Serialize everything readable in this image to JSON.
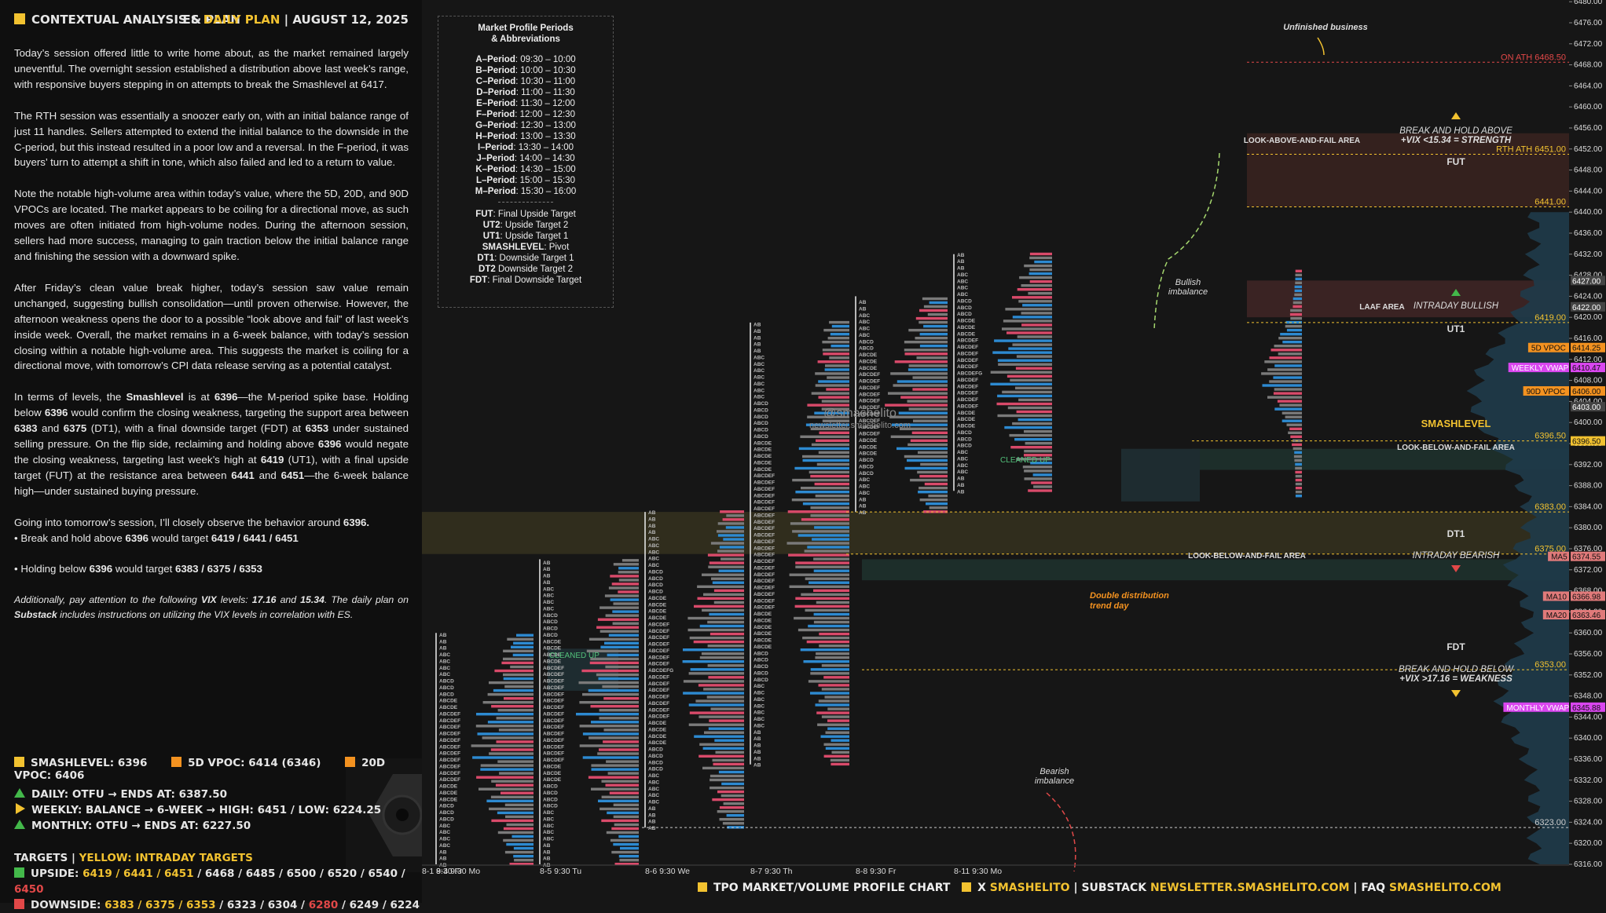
{
  "header": {
    "title": "CONTEXTUAL ANALYSIS & PLAN",
    "plan_prefix": "ES",
    "plan_label": "DAILY PLAN",
    "separator": "|",
    "date": "AUGUST 12, 2025"
  },
  "body": {
    "p1": "Today’s session offered little to write home about, as the market remained largely uneventful. The overnight session established a distribution above last week’s range, with responsive buyers stepping in on attempts to break the Smashlevel at 6417.",
    "p2": "The RTH session was essentially a snoozer early on, with an initial balance range of just 11 handles. Sellers attempted to extend the initial balance to the downside in the C-period, but this instead resulted in a poor low and a reversal. In the F-period, it was buyers’ turn to attempt a shift in tone, which also failed and led to a return to value.",
    "p3": "Note the notable high-volume area within today’s value, where the 5D, 20D, and 90D VPOCs are located. The market appears to be coiling for a directional move, as such moves are often initiated from high-volume nodes. During the afternoon session, sellers had more success, managing to gain traction below the initial balance range and finishing the session with a downward spike.",
    "p4": "After Friday’s clean value break higher, today’s session saw value remain unchanged, suggesting bullish consolidation—until proven otherwise. However, the afternoon weakness opens the door to a possible “look above and fail” of last week’s inside week. Overall, the market remains in a 6-week balance, with today’s session closing within a notable high-volume area. This suggests the market is coiling for a directional move, with tomorrow’s CPI data release serving as a potential catalyst.",
    "p5_a": "In terms of levels, the ",
    "p5_b": "Smashlevel",
    "p5_c": " is at ",
    "p5_d": "6396",
    "p5_e": "—the M-period spike base. Holding below ",
    "p5_f": "6396",
    "p5_g": " would confirm the closing weakness, targeting the support area between ",
    "p5_h": "6383",
    "p5_i": " and ",
    "p5_j": "6375",
    "p5_k": " (DT1), with a final downside target (FDT) at ",
    "p5_l": "6353",
    "p5_m": " under sustained selling pressure. On the flip side, reclaiming and holding above ",
    "p5_n": "6396",
    "p5_o": " would negate the closing weakness, targeting last week’s high at ",
    "p5_p": "6419",
    "p5_q": " (UT1), with a final upside target (FUT) at the resistance area between ",
    "p5_r": "6441",
    "p5_s": " and ",
    "p5_t": "6451",
    "p5_u": "—the 6-week balance high—under sustained buying pressure.",
    "p6_a": "Going into tomorrow’s session, I’ll closely observe the behavior around ",
    "p6_b": "6396.",
    "b1_a": "• Break and hold above ",
    "b1_b": "6396",
    "b1_c": " would target ",
    "b1_d": "6419 / 6441 / 6451",
    "b2_a": "• Holding below ",
    "b2_b": "6396",
    "b2_c": " would target ",
    "b2_d": "6383 / 6375 / 6353",
    "p7_a": "Additionally, pay attention to the following ",
    "p7_b": "VIX",
    "p7_c": " levels: ",
    "p7_d": "17.16",
    "p7_e": " and ",
    "p7_f": "15.34",
    "p7_g": ". The daily plan on ",
    "p7_h": "Substack",
    "p7_i": " includes instructions on utilizing the VIX levels in correlation with ES."
  },
  "levels_row": {
    "smashlevel": "SMASHLEVEL: 6396",
    "vpoc5d": "5D VPOC: 6414 (6346)",
    "vpoc20d": "20D VPOC: 6406"
  },
  "trend": {
    "daily": "DAILY: OTFU → ENDS AT: 6387.50",
    "weekly": "WEEKLY: BALANCE → 6-WEEK → HIGH: 6451 / LOW: 6224.25",
    "monthly": "MONTHLY: OTFU → ENDS AT: 6227.50"
  },
  "targets": {
    "label": "TARGETS",
    "sep": "|",
    "intraday_label": "YELLOW: INTRADAY TARGETS",
    "upside_label": "UPSIDE: ",
    "upside_yellow": "6419 / 6441 / 6451",
    "upside_rest": " / 6468 / 6485 / 6500 / 6520 / 6540 / ",
    "upside_red": "6450",
    "downside_label": "DOWNSIDE: ",
    "downside_yellow": "6383 / 6375 / 6353",
    "downside_rest1": " / 6323 / 6304 / ",
    "downside_red": "6280",
    "downside_rest2": " / 6249 / 6224"
  },
  "footer": {
    "chart_name": "TPO MARKET/VOLUME PROFILE CHART",
    "x_label": "X",
    "x_handle": "SMASHELITO",
    "substack_label": "SUBSTACK",
    "substack_url": "NEWSLETTER.SMASHELITO.COM",
    "faq_label": "FAQ",
    "faq_url": "SMASHELITO.COM",
    "sep": "|"
  },
  "legend": {
    "title1": "Market Profile Periods",
    "title2": "& Abbreviations",
    "periods": [
      {
        "k": "A–Period",
        "v": ": 09:30 – 10:00"
      },
      {
        "k": "B–Period",
        "v": ": 10:00 – 10:30"
      },
      {
        "k": "C–Period",
        "v": ": 10:30 – 11:00"
      },
      {
        "k": "D–Period",
        "v": ": 11:00 – 11:30"
      },
      {
        "k": "E–Period",
        "v": ": 11:30 – 12:00"
      },
      {
        "k": "F–Period",
        "v": ": 12:00 – 12:30"
      },
      {
        "k": "G–Period",
        "v": ": 12:30 – 13:00"
      },
      {
        "k": "H–Period",
        "v": ": 13:00 – 13:30"
      },
      {
        "k": "I–Period",
        "v": ": 13:30 – 14:00"
      },
      {
        "k": "J–Period",
        "v": ": 14:00 – 14:30"
      },
      {
        "k": "K–Period",
        "v": ": 14:30 – 15:00"
      },
      {
        "k": "L–Period",
        "v": ": 15:00 – 15:30"
      },
      {
        "k": "M–Period",
        "v": ": 15:30 – 16:00"
      }
    ],
    "abbrevs": [
      {
        "k": "FUT",
        "v": ": Final Upside Target"
      },
      {
        "k": "UT2",
        "v": ": Upside Target 2"
      },
      {
        "k": "UT1",
        "v": ": Upside Target 1"
      },
      {
        "k": "SMASHLEVEL",
        "v": ": Pivot"
      },
      {
        "k": "DT1",
        "v": ": Downside Target 1"
      },
      {
        "k": "DT2",
        "v": " Downside Target 2"
      },
      {
        "k": "FDT",
        "v": ": Final Downside Target"
      }
    ]
  },
  "watermark": {
    "handle": "@smashelito",
    "site": "newsletter.smashelito.com"
  },
  "chart_data": {
    "type": "tpo-profile",
    "y_axis": {
      "min": 6315,
      "max": 6480,
      "ticks": [
        6316,
        6320,
        6324,
        6328,
        6332,
        6336,
        6340,
        6344,
        6348,
        6352,
        6356,
        6360,
        6364,
        6368,
        6372,
        6376,
        6380,
        6384,
        6388,
        6392,
        6396,
        6400,
        6404,
        6408,
        6412,
        6416,
        6420,
        6424,
        6428,
        6432,
        6436,
        6440,
        6444,
        6448,
        6452,
        6456,
        6460,
        6464,
        6468,
        6472,
        6476,
        6480
      ],
      "tick_labels": [
        "6316.00",
        "6320.00",
        "6324.00",
        "6328.00",
        "6332.00",
        "6336.00",
        "6340.00",
        "6344.00",
        "6348.00",
        "6352.00",
        "6356.00",
        "6360.00",
        "6364.00",
        "6368.00",
        "6372.00",
        "6376.00",
        "6380.00",
        "6384.00",
        "6388.00",
        "6392.00",
        "6396.00",
        "6400.00",
        "6404.00",
        "6408.00",
        "6412.00",
        "6416.00",
        "6420.00",
        "6424.00",
        "6428.00",
        "6432.00",
        "6436.00",
        "6440.00",
        "6444.00",
        "6448.00",
        "6452.00",
        "6456.00",
        "6460.00",
        "6464.00",
        "6468.00",
        "6472.00",
        "6476.00",
        "6480.00"
      ]
    },
    "x_sessions": [
      {
        "label": "8-1  9:30 Fr",
        "lo": 6316,
        "hi": 6360
      },
      {
        "label": "8-4  9:30 Mo",
        "lo": 6316,
        "hi": 6360
      },
      {
        "label": "8-5  9:30 Tu",
        "lo": 6316,
        "hi": 6374
      },
      {
        "label": "8-6  9:30 We",
        "lo": 6323,
        "hi": 6383
      },
      {
        "label": "8-7  9:30 Th",
        "lo": 6335,
        "hi": 6419
      },
      {
        "label": "8-8  9:30 Fr",
        "lo": 6383,
        "hi": 6424
      },
      {
        "label": "8-11  9:30 Mo",
        "lo": 6387,
        "hi": 6432
      }
    ],
    "levels": [
      {
        "label": "ON ATH",
        "value": "6468.50",
        "color": "#e24848"
      },
      {
        "label": "RTH ATH",
        "value": "6451.00",
        "color": "#f2c230"
      },
      {
        "label": "",
        "value": "6441.00",
        "color": "#f2c230"
      },
      {
        "label": "",
        "value": "6419.00",
        "color": "#f2c230"
      },
      {
        "label": "",
        "value": "6396.50",
        "color": "#f2c230"
      },
      {
        "label": "",
        "value": "6383.00",
        "color": "#f2c230"
      },
      {
        "label": "",
        "value": "6375.00",
        "color": "#f2c230"
      },
      {
        "label": "",
        "value": "6353.00",
        "color": "#f2c230"
      },
      {
        "label": "",
        "value": "6323.00",
        "color": "#cccccc"
      }
    ],
    "tags": [
      {
        "label": "",
        "value": "6427.00",
        "v": 6427,
        "bg": "#444444"
      },
      {
        "label": "",
        "value": "6422.00",
        "v": 6422,
        "bg": "#444444"
      },
      {
        "label": "5D VPOC",
        "value": "6414.25",
        "v": 6414.25,
        "bg": "#f39220"
      },
      {
        "label": "WEEKLY VWAP",
        "value": "6410.47",
        "v": 6410.47,
        "bg": "#d946ef"
      },
      {
        "label": "90D VPOC",
        "value": "6406.00",
        "v": 6406,
        "bg": "#f39220"
      },
      {
        "label": "",
        "value": "6403.00",
        "v": 6403,
        "bg": "#444444"
      },
      {
        "label": "",
        "value": "6396.50",
        "v": 6396.5,
        "bg": "#f2c230"
      },
      {
        "label": "MA5",
        "value": "6374.55",
        "v": 6374.55,
        "bg": "#e07a7a"
      },
      {
        "label": "MA10",
        "value": "6366.98",
        "v": 6366.98,
        "bg": "#e07a7a"
      },
      {
        "label": "MA20",
        "value": "6363.46",
        "v": 6363.46,
        "bg": "#e07a7a"
      },
      {
        "label": "MONTHLY VWAP",
        "value": "6345.88",
        "v": 6345.88,
        "bg": "#d946ef"
      }
    ],
    "annotations": {
      "unfinished": "Unfinished business",
      "look_above": "LOOK-ABOVE-AND-FAIL AREA",
      "break_above_1": "BREAK AND HOLD ABOVE",
      "break_above_2": "+VIX <15.34 = STRENGTH",
      "fut": "FUT",
      "laaf": "LAAF AREA",
      "intraday_bullish": "INTRADAY BULLISH",
      "ut1": "UT1",
      "smashlevel": "SMASHLEVEL",
      "look_below_1": "LOOK-BELOW-AND-FAIL AREA",
      "dt1": "DT1",
      "look_below_2": "LOOK-BELOW-AND-FAIL AREA",
      "intraday_bearish": "INTRADAY BEARISH",
      "fdt": "FDT",
      "break_below_1": "BREAK AND HOLD BELOW",
      "break_below_2": "+VIX >17.16 = WEAKNESS",
      "bullish_imb_1": "Bullish",
      "bullish_imb_2": "imbalance",
      "bearish_imb_1": "Bearish",
      "bearish_imb_2": "imbalance",
      "double_dist_1": "Double distribution",
      "double_dist_2": "trend day",
      "cleaned_up_1": "CLEANED UP",
      "cleaned_up_2": "CLEANED UP"
    }
  }
}
